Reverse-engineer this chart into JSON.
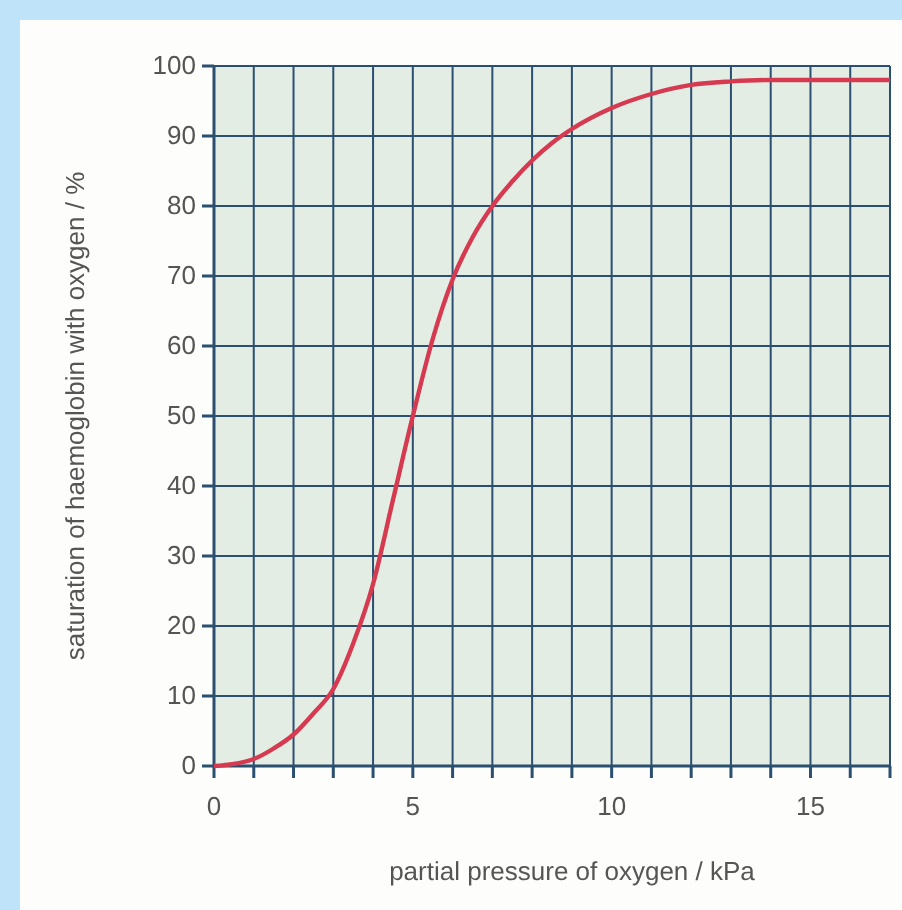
{
  "chart_data": {
    "type": "line",
    "xlabel": "partial pressure of oxygen / kPa",
    "ylabel": "saturation of haemoglobin with oxygen / %",
    "x": [
      0,
      0.5,
      1,
      1.5,
      2,
      2.5,
      3,
      3.5,
      4,
      4.5,
      5,
      5.5,
      6,
      6.5,
      7,
      7.5,
      8,
      8.5,
      9,
      10,
      11,
      12,
      13,
      14,
      15,
      16,
      17
    ],
    "series": [
      {
        "color": "#d63a50",
        "values": [
          0,
          0.3,
          1,
          2.5,
          4.5,
          7.5,
          11,
          17.5,
          26,
          38,
          50,
          61,
          69.5,
          75.5,
          80,
          83.5,
          86.5,
          89,
          91,
          94,
          96,
          97.3,
          97.8,
          98,
          98,
          98,
          98
        ]
      }
    ],
    "xlim": [
      0,
      17
    ],
    "xticks": [
      0,
      {
        "value": 1,
        "label": null
      },
      {
        "value": 2,
        "label": null
      },
      {
        "value": 3,
        "label": null
      },
      {
        "value": 4,
        "label": null
      },
      5,
      {
        "value": 6,
        "label": null
      },
      {
        "value": 7,
        "label": null
      },
      {
        "value": 8,
        "label": null
      },
      {
        "value": 9,
        "label": null
      },
      10,
      {
        "value": 11,
        "label": null
      },
      {
        "value": 12,
        "label": null
      },
      {
        "value": 13,
        "label": null
      },
      {
        "value": 14,
        "label": null
      },
      15,
      {
        "value": 16,
        "label": null
      },
      {
        "value": 17,
        "label": null
      }
    ],
    "ylim": [
      0,
      100
    ],
    "yticks": [
      0,
      10,
      20,
      30,
      40,
      50,
      60,
      70,
      80,
      90,
      100
    ],
    "grid": true,
    "marker": "none",
    "line_style": "solid"
  }
}
